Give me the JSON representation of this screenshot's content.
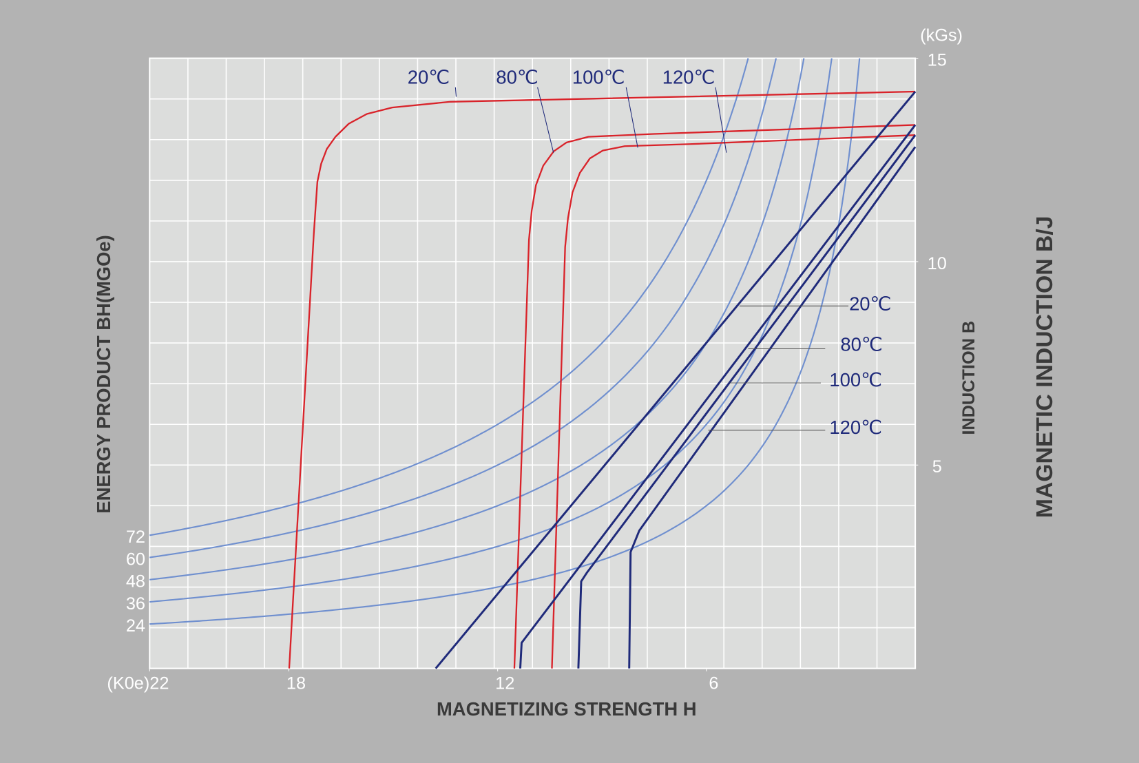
{
  "chart_data": {
    "type": "line",
    "x_label": "MAGNETIZING  STRENGTH    H",
    "y_label": "INDUCTION   B",
    "y_unit": "(kGs)",
    "left_label": "ENERGY PRODUCT BH(MGOe)",
    "right_label": "MAGNETIC INDUCTION B/J",
    "xlim": [
      22,
      0
    ],
    "ylim": [
      0,
      15
    ],
    "xticks": [
      {
        "value": 22,
        "label": "(K0e)22"
      },
      18,
      12,
      6
    ],
    "yticks": [
      5,
      10,
      15
    ],
    "grid": true,
    "energy_product_curves": {
      "color": "#6f8fcf",
      "values": [
        72,
        60,
        48,
        36,
        24
      ]
    },
    "intrinsic_curves": [
      {
        "color": "#d9232a",
        "x": [
          17.99,
          17.28,
          17.18,
          17.07,
          16.91,
          16.66,
          16.28,
          15.76,
          15.03,
          13.36,
          9.6,
          0
        ],
        "values": [
          0,
          10.71,
          11.96,
          12.41,
          12.77,
          13.07,
          13.39,
          13.63,
          13.79,
          13.93,
          14.0,
          14.18
        ]
      },
      {
        "color": "#d9232a",
        "x": [
          11.52,
          11.1,
          11.02,
          10.9,
          10.69,
          10.39,
          10.02,
          9.39,
          7.51,
          0
        ],
        "values": [
          0,
          10.54,
          11.25,
          11.88,
          12.36,
          12.71,
          12.93,
          13.07,
          13.14,
          13.36
        ]
      },
      {
        "color": "#d9232a",
        "x": [
          10.44,
          10.06,
          9.98,
          9.85,
          9.64,
          9.35,
          8.98,
          8.35,
          6.47,
          0
        ],
        "values": [
          0,
          10.36,
          11.07,
          11.7,
          12.18,
          12.54,
          12.73,
          12.84,
          12.89,
          13.11
        ]
      }
    ],
    "normal_curves": [
      {
        "color": "#1f2a7a",
        "x": [
          13.78,
          0
        ],
        "values": [
          0,
          14.18
        ]
      },
      {
        "color": "#1f2a7a",
        "x": [
          11.35,
          11.31,
          0
        ],
        "values": [
          0,
          0.63,
          13.36
        ]
      },
      {
        "color": "#1f2a7a",
        "x": [
          9.68,
          9.6,
          9.43,
          0
        ],
        "values": [
          0,
          2.14,
          2.36,
          13.11
        ]
      },
      {
        "color": "#1f2a7a",
        "x": [
          8.22,
          8.18,
          7.93,
          0
        ],
        "values": [
          0,
          2.86,
          3.39,
          12.82
        ]
      }
    ],
    "top_labels": [
      "20℃",
      "80℃",
      "100℃",
      "120℃"
    ],
    "right_labels": [
      "20℃",
      "80℃",
      "100℃",
      "120℃"
    ]
  }
}
